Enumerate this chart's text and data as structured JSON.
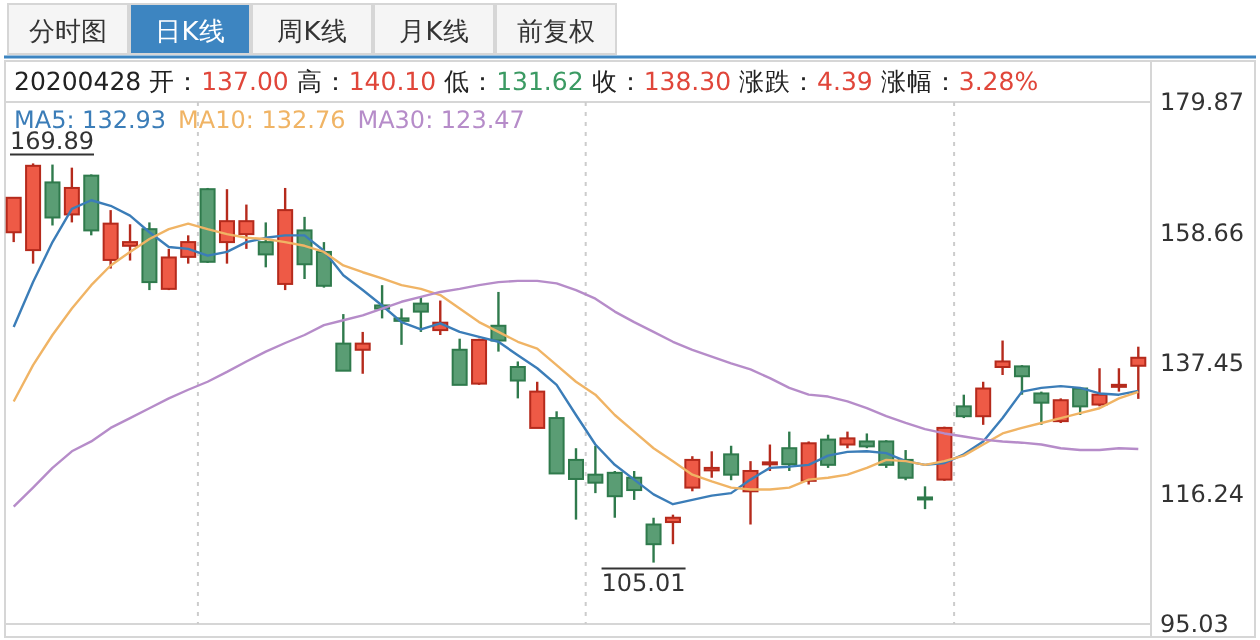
{
  "chart_data": {
    "type": "candlestick",
    "title": "20200428 开：137.00 高：140.10 低：131.62 收：138.30 涨跌：4.39 涨幅：3.28%",
    "categories": [
      null,
      null,
      null,
      null,
      null,
      null,
      null,
      null,
      null,
      null,
      null,
      null,
      null,
      null,
      null,
      null,
      null,
      null,
      null,
      null,
      null,
      null,
      null,
      null,
      null,
      null,
      null,
      null,
      null,
      null,
      null,
      null,
      null,
      null,
      null,
      null,
      null,
      null,
      null,
      null,
      null,
      null,
      null,
      null,
      null,
      null,
      null,
      null,
      null,
      null,
      null,
      null,
      null,
      null,
      null,
      null,
      null,
      null,
      null
    ],
    "ohlc": [
      [
        158.7,
        164.3,
        157.1,
        164.3
      ],
      [
        155.8,
        169.89,
        153.6,
        169.5
      ],
      [
        166.8,
        169.7,
        159.8,
        161.1
      ],
      [
        161.6,
        169.2,
        160.3,
        165.9
      ],
      [
        167.9,
        168.1,
        158.2,
        159.0
      ],
      [
        154.2,
        162.3,
        152.8,
        160.1
      ],
      [
        156.5,
        160.0,
        154.1,
        157.1
      ],
      [
        159.2,
        160.3,
        149.3,
        150.6
      ],
      [
        149.5,
        156.0,
        149.3,
        154.6
      ],
      [
        154.7,
        158.2,
        153.6,
        157.1
      ],
      [
        165.7,
        165.9,
        153.7,
        153.9
      ],
      [
        157.1,
        165.7,
        153.6,
        160.5
      ],
      [
        158.4,
        163.2,
        156.0,
        160.5
      ],
      [
        157.1,
        160.3,
        153.0,
        155.1
      ],
      [
        150.3,
        165.9,
        149.3,
        162.3
      ],
      [
        159.0,
        161.2,
        151.1,
        153.5
      ],
      [
        155.5,
        157.1,
        149.7,
        150.0
      ],
      [
        140.6,
        145.4,
        136.2,
        136.2
      ],
      [
        139.6,
        142.5,
        135.7,
        140.6
      ],
      [
        146.8,
        150.1,
        144.7,
        146.3
      ],
      [
        144.7,
        146.3,
        140.4,
        144.3
      ],
      [
        147.1,
        148.2,
        142.5,
        145.8
      ],
      [
        142.8,
        147.6,
        142.0,
        144.0
      ],
      [
        139.6,
        141.4,
        133.9,
        133.9
      ],
      [
        134.1,
        141.4,
        133.9,
        141.2
      ],
      [
        143.5,
        149.0,
        139.3,
        141.1
      ],
      [
        136.8,
        137.7,
        131.7,
        134.6
      ],
      [
        126.9,
        134.4,
        126.9,
        132.8
      ],
      [
        128.5,
        129.6,
        119.5,
        119.5
      ],
      [
        121.7,
        123.6,
        112.0,
        118.6
      ],
      [
        119.3,
        124.0,
        116.3,
        118.0
      ],
      [
        119.6,
        119.9,
        112.3,
        115.8
      ],
      [
        118.8,
        119.9,
        115.2,
        116.8
      ],
      [
        111.2,
        112.3,
        105.01,
        108.0
      ],
      [
        111.6,
        112.8,
        108.0,
        112.3
      ],
      [
        117.2,
        122.3,
        116.6,
        121.7
      ],
      [
        120.0,
        123.1,
        118.8,
        120.4
      ],
      [
        122.6,
        124.0,
        118.4,
        119.3
      ],
      [
        116.6,
        121.5,
        111.2,
        119.9
      ],
      [
        121.1,
        124.2,
        119.9,
        121.3
      ],
      [
        123.6,
        126.3,
        119.9,
        121.0
      ],
      [
        118.3,
        124.7,
        117.7,
        124.4
      ],
      [
        125.0,
        125.8,
        120.4,
        120.9
      ],
      [
        124.2,
        126.3,
        123.6,
        125.2
      ],
      [
        124.7,
        126.0,
        123.6,
        123.9
      ],
      [
        124.7,
        124.9,
        120.4,
        120.9
      ],
      [
        121.7,
        123.3,
        118.4,
        118.8
      ],
      [
        115.6,
        117.4,
        113.7,
        115.4
      ],
      [
        118.5,
        127.1,
        118.3,
        126.9
      ],
      [
        130.4,
        132.3,
        128.5,
        128.8
      ],
      [
        128.8,
        134.4,
        127.4,
        133.3
      ],
      [
        136.8,
        141.1,
        135.5,
        137.7
      ],
      [
        136.9,
        137.1,
        132.3,
        135.3
      ],
      [
        132.5,
        132.8,
        127.4,
        131.0
      ],
      [
        128.0,
        131.7,
        127.7,
        131.4
      ],
      [
        133.3,
        133.5,
        129.0,
        130.4
      ],
      [
        130.7,
        136.6,
        130.4,
        132.3
      ],
      [
        133.6,
        136.6,
        132.8,
        133.9
      ],
      [
        137.0,
        140.1,
        131.62,
        138.3
      ]
    ],
    "series": [
      {
        "name": "MA5: 132.93",
        "type": "line",
        "color": "#3b7db8",
        "values": [
          143.3,
          150.6,
          157.1,
          162.5,
          163.9,
          163.0,
          161.4,
          158.7,
          156.3,
          156.0,
          154.9,
          155.5,
          157.1,
          157.8,
          158.2,
          158.2,
          155.7,
          151.7,
          149.3,
          146.8,
          144.1,
          142.9,
          143.9,
          142.5,
          141.7,
          140.9,
          138.7,
          136.6,
          133.9,
          129.0,
          124.2,
          120.9,
          118.5,
          116.1,
          114.5,
          115.2,
          115.9,
          116.3,
          118.5,
          120.4,
          120.6,
          120.9,
          122.4,
          123.0,
          123.1,
          122.8,
          121.5,
          120.9,
          121.2,
          122.6,
          124.7,
          128.5,
          132.8,
          133.4,
          133.7,
          133.4,
          132.5,
          132.3,
          132.93
        ]
      },
      {
        "name": "MA10: 132.76",
        "type": "line",
        "color": "#f0b465",
        "values": [
          131.2,
          137.1,
          142.0,
          146.3,
          150.1,
          153.3,
          155.5,
          157.6,
          159.2,
          160.1,
          159.2,
          158.4,
          157.8,
          157.6,
          157.1,
          156.5,
          155.5,
          153.3,
          152.2,
          151.2,
          150.1,
          149.5,
          148.5,
          146.3,
          144.1,
          142.5,
          140.9,
          139.8,
          137.1,
          134.4,
          132.3,
          129.0,
          126.3,
          123.6,
          121.5,
          119.3,
          118.2,
          117.2,
          116.9,
          116.9,
          117.2,
          118.5,
          118.8,
          119.3,
          120.4,
          121.7,
          121.5,
          120.9,
          121.5,
          122.4,
          124.2,
          126.0,
          126.9,
          127.7,
          128.5,
          129.3,
          130.1,
          131.7,
          132.76
        ]
      },
      {
        "name": "MA30: 123.47",
        "type": "line",
        "color": "#b68cc9",
        "values": [
          114.1,
          117.2,
          120.4,
          123.1,
          124.7,
          126.9,
          128.5,
          130.1,
          131.7,
          133.1,
          134.4,
          136.0,
          137.7,
          139.3,
          140.7,
          142.0,
          143.6,
          144.4,
          145.2,
          146.3,
          147.4,
          148.2,
          149.0,
          149.5,
          150.1,
          150.6,
          150.8,
          150.8,
          150.4,
          149.3,
          147.9,
          145.8,
          144.1,
          142.5,
          140.9,
          139.6,
          138.5,
          137.4,
          136.4,
          135.0,
          133.4,
          132.3,
          132.0,
          131.2,
          130.1,
          128.8,
          127.7,
          126.7,
          126.0,
          125.5,
          125.0,
          124.7,
          124.5,
          124.2,
          123.6,
          123.3,
          123.3,
          123.6,
          123.47
        ]
      }
    ],
    "ylim": [
      95.03,
      179.87
    ],
    "yticks": [
      95.03,
      116.24,
      137.45,
      158.66,
      179.87
    ],
    "annotations": [
      "分时图",
      "日K线",
      "周K线",
      "月K线",
      "前复权",
      {
        "text": "169.89",
        "y": 169.89
      },
      {
        "text": "105.01",
        "y": 105.01
      }
    ]
  }
}
